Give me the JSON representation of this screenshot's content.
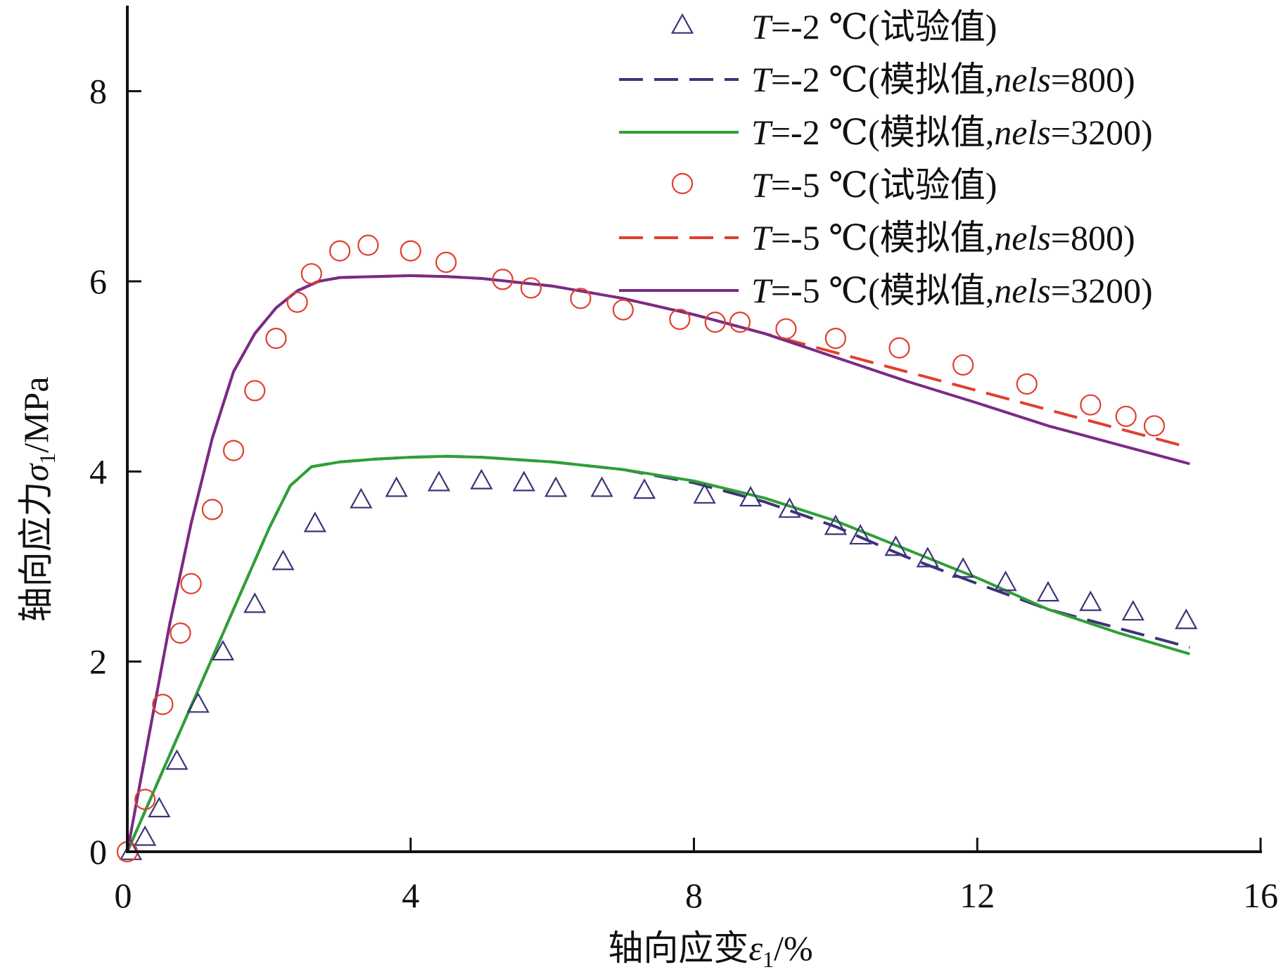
{
  "chart_data": {
    "type": "line",
    "title": "",
    "xlabel_prefix": "轴向应变",
    "xlabel_symbol": "ε",
    "xlabel_sub": "1",
    "xlabel_suffix": "/%",
    "ylabel_prefix": "轴向应力",
    "ylabel_symbol": "σ",
    "ylabel_sub": "1",
    "ylabel_suffix": "/MPa",
    "xlim": [
      0,
      16
    ],
    "ylim": [
      0,
      8.9
    ],
    "xticks": [
      0,
      4,
      8,
      12,
      16
    ],
    "yticks": [
      0,
      2,
      4,
      6,
      8
    ],
    "grid": false,
    "legend_position": "top-right",
    "series": [
      {
        "name": "T=-2 ℃(试验值)",
        "legend": {
          "t": "T",
          "mid": "=-2 ℃(试验值)",
          "nels": "",
          "tail": ""
        },
        "style": "triangle",
        "color": "#3c3478",
        "x": [
          0.05,
          0.25,
          0.45,
          0.7,
          1.0,
          1.35,
          1.8,
          2.2,
          2.65,
          3.3,
          3.8,
          4.4,
          5.0,
          5.6,
          6.05,
          6.7,
          7.3,
          8.15,
          8.8,
          9.35,
          10.0,
          10.35,
          10.85,
          11.3,
          11.8,
          12.4,
          13.0,
          13.6,
          14.2,
          14.95
        ],
        "y": [
          0.0,
          0.15,
          0.45,
          0.95,
          1.55,
          2.1,
          2.6,
          3.05,
          3.45,
          3.7,
          3.82,
          3.88,
          3.9,
          3.88,
          3.82,
          3.82,
          3.8,
          3.75,
          3.72,
          3.6,
          3.42,
          3.32,
          3.2,
          3.08,
          2.97,
          2.83,
          2.72,
          2.62,
          2.52,
          2.43
        ]
      },
      {
        "name": "T=-2 ℃(模拟值,nels=800)",
        "legend": {
          "t": "T",
          "mid": "=-2 ℃(模拟值,",
          "nels": "nels",
          "tail": "=800)"
        },
        "style": "dashed",
        "color": "#3c3478",
        "x": [
          0,
          0.5,
          1.0,
          1.5,
          2.0,
          2.3,
          2.6,
          3.0,
          3.5,
          4.0,
          4.5,
          5.0,
          6.0,
          7.0,
          8.0,
          9.0,
          10.0,
          11.0,
          12.0,
          13.0,
          14.0,
          15.0
        ],
        "y": [
          0,
          0.85,
          1.7,
          2.55,
          3.4,
          3.85,
          4.05,
          4.1,
          4.13,
          4.15,
          4.16,
          4.15,
          4.1,
          4.02,
          3.88,
          3.68,
          3.42,
          3.1,
          2.82,
          2.55,
          2.35,
          2.15
        ]
      },
      {
        "name": "T=-2 ℃(模拟值,nels=3200)",
        "legend": {
          "t": "T",
          "mid": "=-2 ℃(模拟值,",
          "nels": "nels",
          "tail": "=3200)"
        },
        "style": "solid",
        "color": "#2ea036",
        "x": [
          0,
          0.5,
          1.0,
          1.5,
          2.0,
          2.3,
          2.6,
          3.0,
          3.5,
          4.0,
          4.5,
          5.0,
          6.0,
          7.0,
          8.0,
          9.0,
          10.0,
          11.0,
          12.0,
          13.0,
          14.0,
          15.0
        ],
        "y": [
          0,
          0.85,
          1.7,
          2.55,
          3.4,
          3.85,
          4.05,
          4.1,
          4.13,
          4.15,
          4.16,
          4.15,
          4.1,
          4.02,
          3.9,
          3.72,
          3.48,
          3.18,
          2.88,
          2.55,
          2.3,
          2.08
        ]
      },
      {
        "name": "T=-5 ℃(试验值)",
        "legend": {
          "t": "T",
          "mid": "=-5 ℃(试验值)",
          "nels": "",
          "tail": ""
        },
        "style": "circle",
        "color": "#e04030",
        "x": [
          0.0,
          0.25,
          0.5,
          0.75,
          0.9,
          1.2,
          1.5,
          1.8,
          2.1,
          2.4,
          2.6,
          3.0,
          3.4,
          4.0,
          4.5,
          5.3,
          5.7,
          6.4,
          7.0,
          7.8,
          8.3,
          8.65,
          9.3,
          10.0,
          10.9,
          11.8,
          12.7,
          13.6,
          14.1,
          14.5
        ],
        "y": [
          0.0,
          0.55,
          1.55,
          2.3,
          2.82,
          3.6,
          4.22,
          4.85,
          5.4,
          5.78,
          6.08,
          6.32,
          6.38,
          6.32,
          6.2,
          6.02,
          5.93,
          5.82,
          5.7,
          5.6,
          5.57,
          5.57,
          5.5,
          5.4,
          5.3,
          5.12,
          4.92,
          4.7,
          4.58,
          4.48
        ]
      },
      {
        "name": "T=-5 ℃(模拟值,nels=800)",
        "legend": {
          "t": "T",
          "mid": "=-5 ℃(模拟值,",
          "nels": "nels",
          "tail": "=800)"
        },
        "style": "dashed",
        "color": "#e04030",
        "x": [
          0,
          0.3,
          0.6,
          0.9,
          1.2,
          1.5,
          1.8,
          2.1,
          2.4,
          2.7,
          3.0,
          3.5,
          4.0,
          4.5,
          5.0,
          6.0,
          7.0,
          8.0,
          9.0,
          10.0,
          11.0,
          12.0,
          13.0,
          14.0,
          15.0
        ],
        "y": [
          0,
          1.2,
          2.4,
          3.45,
          4.35,
          5.05,
          5.45,
          5.72,
          5.9,
          6.0,
          6.04,
          6.05,
          6.06,
          6.05,
          6.03,
          5.95,
          5.82,
          5.65,
          5.45,
          5.25,
          5.05,
          4.85,
          4.65,
          4.45,
          4.25
        ]
      },
      {
        "name": "T=-5 ℃(模拟值,nels=3200)",
        "legend": {
          "t": "T",
          "mid": "=-5 ℃(模拟值,",
          "nels": "nels",
          "tail": "=3200)"
        },
        "style": "solid",
        "color": "#7a2b85",
        "x": [
          0,
          0.3,
          0.6,
          0.9,
          1.2,
          1.5,
          1.8,
          2.1,
          2.4,
          2.7,
          3.0,
          3.5,
          4.0,
          4.5,
          5.0,
          6.0,
          7.0,
          8.0,
          9.0,
          10.0,
          11.0,
          12.0,
          13.0,
          14.0,
          15.0
        ],
        "y": [
          0,
          1.2,
          2.4,
          3.45,
          4.35,
          5.05,
          5.45,
          5.72,
          5.9,
          6.0,
          6.04,
          6.05,
          6.06,
          6.05,
          6.03,
          5.95,
          5.82,
          5.65,
          5.45,
          5.2,
          4.95,
          4.72,
          4.48,
          4.28,
          4.08
        ]
      }
    ]
  }
}
